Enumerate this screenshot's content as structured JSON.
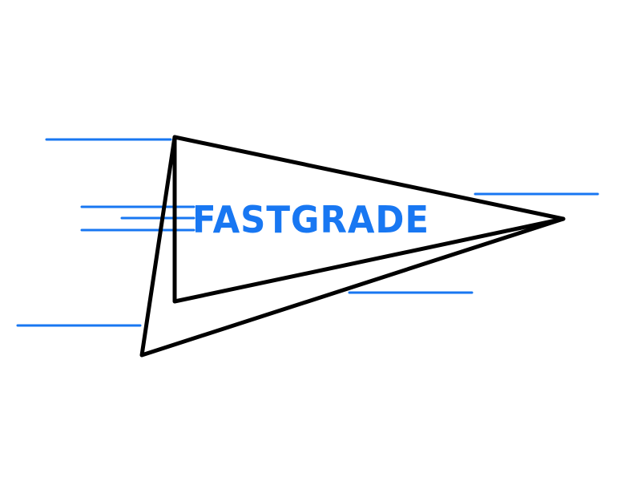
{
  "logo": {
    "wordmark": "FASTGRADE",
    "colors": {
      "accent": "#1877f2",
      "outline": "#000000",
      "background": "#ffffff"
    },
    "icon": "paper-plane-pennant-icon"
  }
}
